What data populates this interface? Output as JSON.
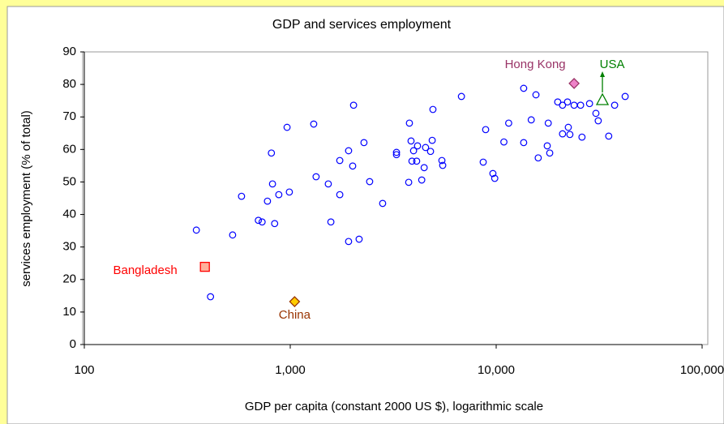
{
  "chart_data": {
    "type": "scatter",
    "title": "GDP and services employment",
    "x_label": "GDP per capita (constant 2000 US $), logarithmic scale",
    "y_label": "services employment (% of total)",
    "x_log": true,
    "xlim": [
      100,
      100000
    ],
    "xticks": [
      100,
      {
        "value": 1000,
        "label": "1,000"
      },
      {
        "value": 10000,
        "label": "10,000"
      },
      {
        "value": 100000,
        "label": "100,000"
      }
    ],
    "ylim": [
      0,
      90
    ],
    "yticks": [
      0,
      10,
      20,
      30,
      40,
      50,
      60,
      70,
      80,
      90
    ],
    "grid": false,
    "series": [
      {
        "color": "#0000ff",
        "x": [
          350,
          410,
          525,
          580,
          700,
          730,
          775,
          810,
          820,
          840,
          880,
          965,
          990,
          1300,
          1335,
          1530,
          1575,
          1740,
          1740,
          1920,
          1920,
          2010,
          2030,
          2160,
          2280,
          2430,
          2810,
          3280,
          3280,
          3760,
          3790,
          3860,
          3900,
          3970,
          4110,
          4150,
          4350,
          4470,
          4540,
          4800,
          4890,
          4930,
          5450,
          5500,
          6780,
          8650,
          8890,
          9640,
          9840,
          10900,
          11500,
          13600,
          13600,
          14800,
          15600,
          16000,
          17700,
          17900,
          18200,
          19900,
          21000,
          21000,
          22200,
          22400,
          22800,
          23900,
          25700,
          26100,
          28400,
          30500,
          31300,
          35200,
          37600,
          42300
        ],
        "values": [
          35.2,
          14.7,
          33.7,
          45.6,
          38.2,
          37.7,
          44.1,
          58.9,
          49.4,
          37.2,
          46.1,
          66.8,
          46.9,
          67.8,
          51.6,
          49.4,
          37.7,
          56.6,
          46.1,
          31.7,
          59.6,
          54.9,
          73.6,
          32.4,
          62.1,
          50.1,
          43.4,
          59.1,
          58.4,
          49.9,
          68.1,
          62.6,
          56.4,
          59.6,
          56.4,
          61.1,
          50.6,
          54.4,
          60.6,
          59.4,
          62.8,
          72.3,
          56.6,
          55.1,
          76.3,
          56.1,
          66.1,
          52.6,
          51.1,
          62.3,
          68.1,
          78.8,
          62.1,
          69.1,
          76.8,
          57.4,
          61.1,
          68.1,
          58.9,
          74.6,
          73.6,
          64.8,
          74.6,
          66.8,
          64.6,
          73.6,
          73.6,
          63.8,
          74.1,
          71.1,
          68.8,
          64.1,
          73.6,
          76.3
        ]
      }
    ],
    "highlights": [
      {
        "label": "Bangladesh",
        "x": 385,
        "y": 23.9,
        "marker": "square",
        "color": "#ff0000",
        "fill": "#ffb09a"
      },
      {
        "label": "China",
        "x": 1050,
        "y": 13.2,
        "marker": "diamond",
        "color": "#993300",
        "fill": "#ffcc00"
      },
      {
        "label": "Hong Kong",
        "x": 23900,
        "y": 80.3,
        "marker": "diamond",
        "color": "#993366",
        "fill": "#ee82c8"
      },
      {
        "label": "USA",
        "x": 32800,
        "y": 75.3,
        "marker": "triangle",
        "color": "#008000",
        "fill": "none"
      }
    ]
  }
}
